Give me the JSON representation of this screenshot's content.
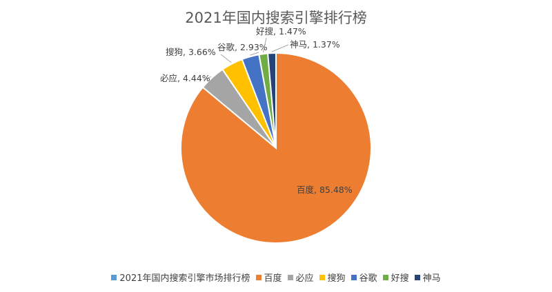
{
  "chart_data": {
    "type": "pie",
    "title": "2021年国内搜索引擎排行榜",
    "legend_position": "bottom",
    "series_name": "2021年国内搜索引擎市场排行榜",
    "series_color": "#5B9BD5",
    "slices": [
      {
        "label": "百度",
        "value": 85.48,
        "value_label": "85.48%",
        "color": "#ED7D31"
      },
      {
        "label": "必应",
        "value": 4.44,
        "value_label": "4.44%",
        "color": "#A5A5A5"
      },
      {
        "label": "搜狗",
        "value": 3.66,
        "value_label": "3.66%",
        "color": "#FFC000"
      },
      {
        "label": "谷歌",
        "value": 2.93,
        "value_label": "2.93%",
        "color": "#4472C4"
      },
      {
        "label": "好搜",
        "value": 1.47,
        "value_label": "1.47%",
        "color": "#70AD47"
      },
      {
        "label": "神马",
        "value": 1.37,
        "value_label": "1.37%",
        "color": "#264478"
      }
    ]
  }
}
